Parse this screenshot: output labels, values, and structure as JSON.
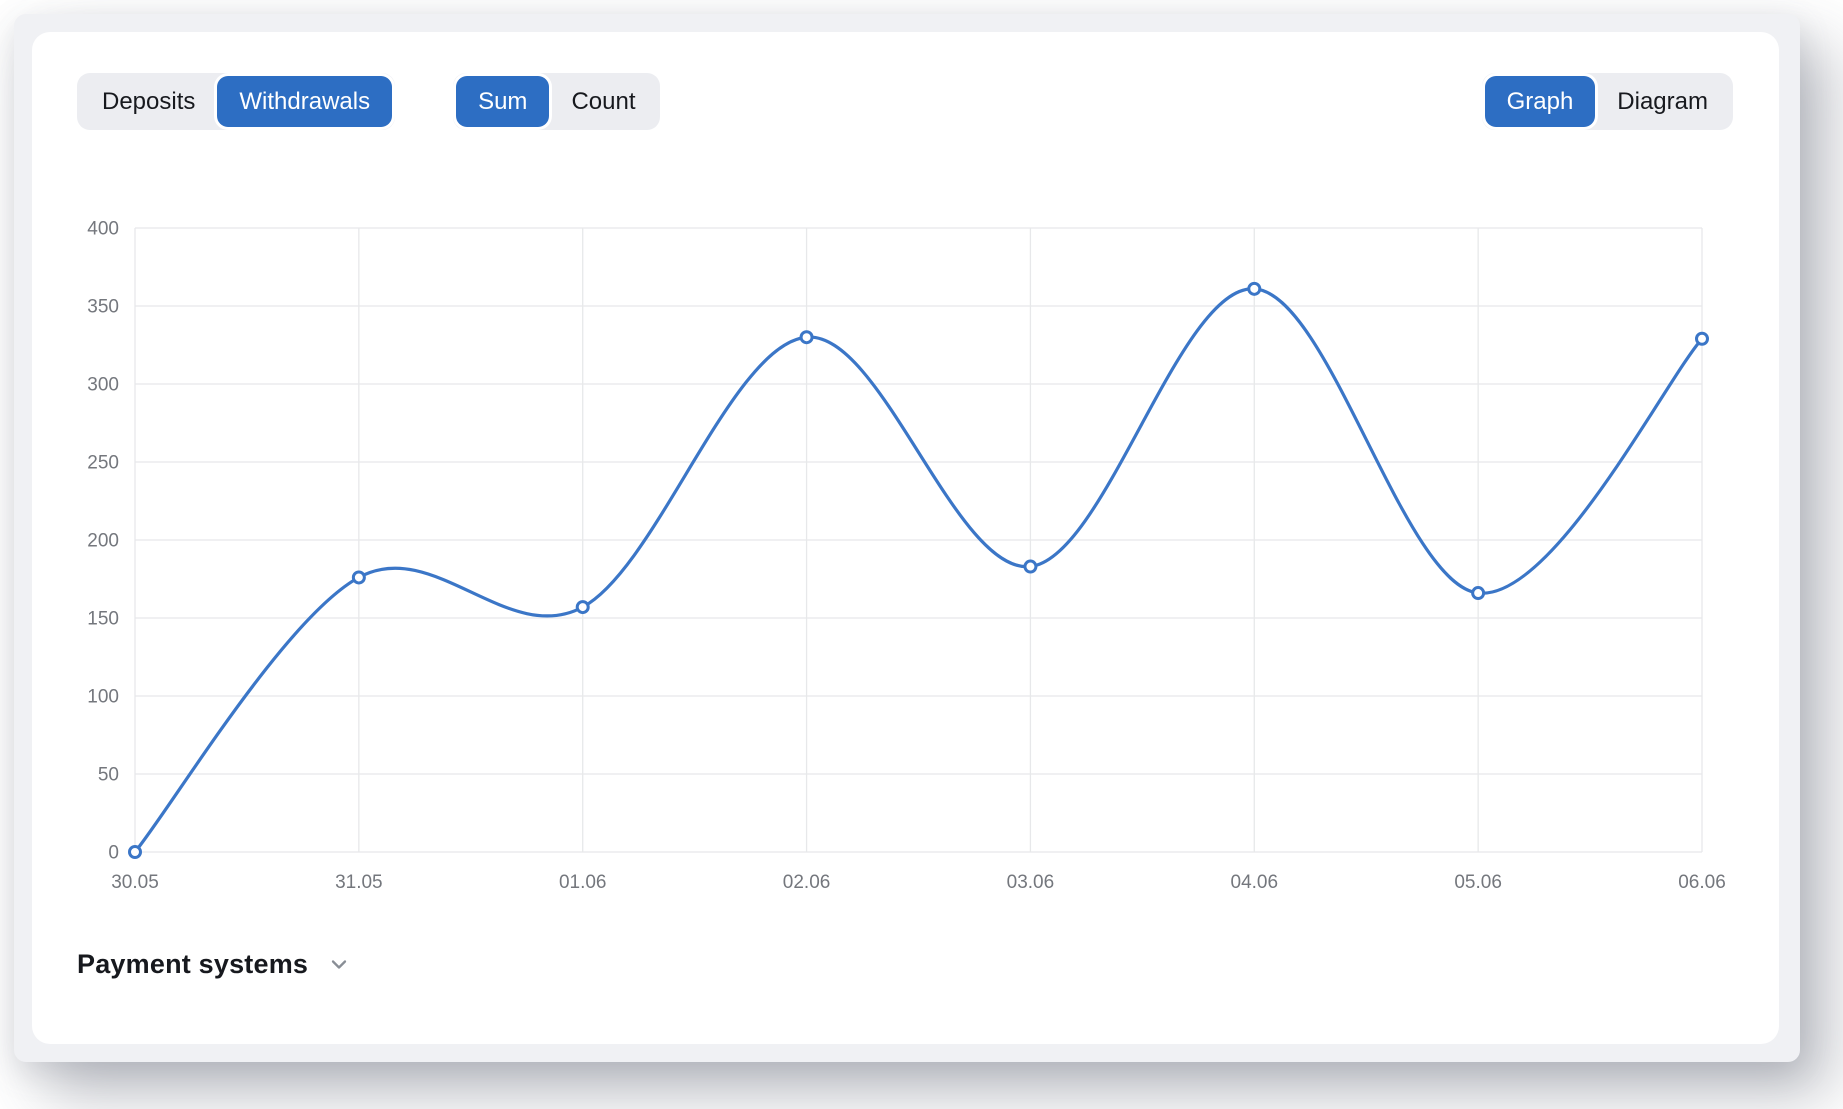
{
  "colors": {
    "accent": "#2d6ec3",
    "line": "#3b76c7",
    "grid": "#e7e8ea",
    "tick_text": "#74777d",
    "text": "#17191e",
    "group_bg": "#ecedf1",
    "panel_bg": "#f0f1f4"
  },
  "toolbar": {
    "transaction_type": {
      "options": [
        "Deposits",
        "Withdrawals"
      ],
      "selected": "Withdrawals"
    },
    "aggregation": {
      "options": [
        "Sum",
        "Count"
      ],
      "selected": "Sum"
    },
    "view_mode": {
      "options": [
        "Graph",
        "Diagram"
      ],
      "selected": "Graph"
    }
  },
  "chart_data": {
    "type": "line",
    "x_labels": [
      "30.05",
      "31.05",
      "01.06",
      "02.06",
      "03.06",
      "04.06",
      "05.06",
      "06.06"
    ],
    "series": [
      {
        "name": "Withdrawals (Sum)",
        "values": [
          0,
          176,
          157,
          330,
          183,
          361,
          166,
          329
        ]
      }
    ],
    "ylim": [
      0,
      400
    ],
    "yticks": [
      0,
      50,
      100,
      150,
      200,
      250,
      300,
      350,
      400
    ],
    "grid": true,
    "legend": "none",
    "curve": "smooth",
    "marker": "open-circle"
  },
  "footer": {
    "payment_systems_label": "Payment systems"
  }
}
